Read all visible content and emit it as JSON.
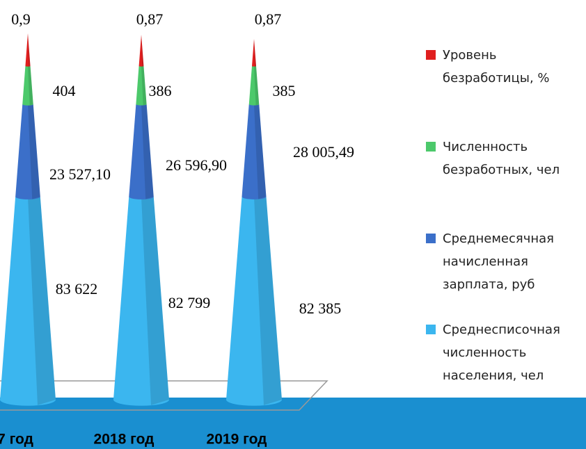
{
  "chart_data": {
    "type": "cone",
    "categories": [
      "7 год",
      "2018 год",
      "2019 год"
    ],
    "series": [
      {
        "name": "Среднесписочная численность населения, чел",
        "color": "#3bb6ef",
        "values": [
          83622,
          82799,
          82385
        ],
        "value_labels": [
          "83 622",
          "82 799",
          "82 385"
        ]
      },
      {
        "name": "Среднемесячная начисленная зарплата, руб",
        "color": "#3b6fc9",
        "values": [
          23527.1,
          26596.9,
          28005.49
        ],
        "value_labels": [
          "23 527,10",
          "26 596,90",
          "28 005,49"
        ]
      },
      {
        "name": "Численность безработных, чел",
        "color": "#4cc96b",
        "values": [
          404,
          386,
          385
        ]
      },
      {
        "name": "Уровень безработицы, %",
        "color": "#e01f1f",
        "values": [
          0.9,
          0.87,
          0.87
        ],
        "value_labels": [
          "0,9",
          "0,87",
          "0,87"
        ]
      }
    ]
  }
}
